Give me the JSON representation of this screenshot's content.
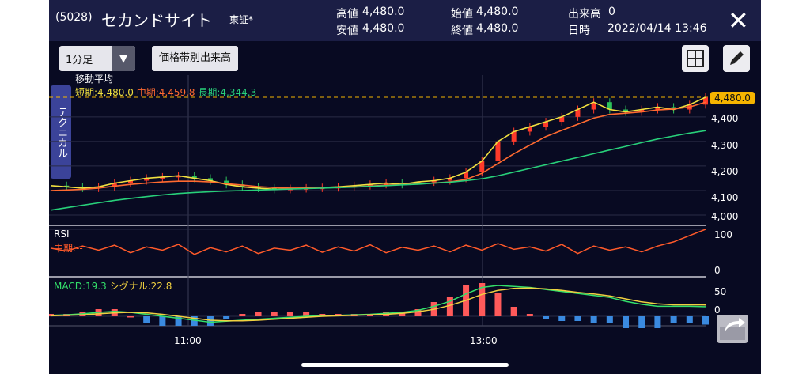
{
  "header": {
    "code": "(5028)",
    "name": "セカンドサイト",
    "market": "東証*",
    "high_label": "高値",
    "high_value": "4,480.0",
    "low_label": "安値",
    "low_value": "4,480.0",
    "open_label": "始値",
    "open_value": "4,480.0",
    "close_label": "終値",
    "close_value": "4,480.0",
    "volume_label": "出来高",
    "volume_value": "0",
    "datetime_label": "日時",
    "datetime_value": "2022/04/14 13:46",
    "close_icon": "close-icon"
  },
  "toolbar": {
    "interval": "1分足",
    "dropdown_icon": "triangle-down-icon",
    "volume_by_price": "価格帯別出来高",
    "grid_icon": "grid-icon",
    "pencil_icon": "pencil-icon"
  },
  "side_tab": "テクニカル",
  "moving_average": {
    "title": "移動平均",
    "short": "短期:4,480.0",
    "mid": "中期:4,459.8",
    "long": "長期:4,344.3",
    "short_color": "#f0e040",
    "mid_color": "#ff6a30",
    "long_color": "#28d07a"
  },
  "price_axis": [
    "4,400",
    "4,300",
    "4,200",
    "4,100",
    "4,000"
  ],
  "current_price": "4,480.0",
  "rsi": {
    "title": "RSI",
    "mid": "中期:--",
    "axis": [
      "100",
      "0"
    ]
  },
  "macd": {
    "macd": "MACD:19.3",
    "signal": "シグナル:22.8",
    "axis": [
      "50",
      "0"
    ],
    "macd_color": "#33e06a",
    "signal_color": "#f0d040"
  },
  "time_axis": [
    "11:00",
    "13:00"
  ],
  "share_icon": "share-icon",
  "colors": {
    "background": "#080a22",
    "header": "#1b1e45",
    "up": "#ff3a2a",
    "down": "#2ec25a"
  },
  "chart_data": [
    {
      "type": "line",
      "title": "移動平均",
      "ylim": [
        4000,
        4480
      ],
      "yticks": [
        4000,
        4100,
        4200,
        4300,
        4400
      ],
      "xticks": [
        "11:00",
        "13:00"
      ],
      "x": [
        0,
        20,
        40,
        60,
        80,
        100,
        120,
        140,
        160,
        180,
        200,
        220,
        240,
        260,
        280,
        300,
        320,
        340,
        360,
        380,
        400,
        420,
        440,
        460,
        480,
        500,
        520,
        540,
        560,
        580,
        600,
        620,
        640,
        660,
        680,
        700,
        720,
        740,
        760,
        780,
        800,
        820
      ],
      "series": [
        {
          "name": "短期",
          "values": [
            4120,
            4115,
            4110,
            4115,
            4130,
            4140,
            4150,
            4155,
            4160,
            4150,
            4140,
            4125,
            4115,
            4110,
            4105,
            4108,
            4110,
            4112,
            4115,
            4120,
            4125,
            4130,
            4125,
            4135,
            4140,
            4150,
            4175,
            4220,
            4300,
            4340,
            4360,
            4380,
            4400,
            4430,
            4460,
            4430,
            4420,
            4430,
            4440,
            4430,
            4450,
            4480
          ]
        },
        {
          "name": "中期",
          "values": [
            4100,
            4102,
            4105,
            4110,
            4118,
            4125,
            4130,
            4135,
            4138,
            4138,
            4135,
            4128,
            4122,
            4116,
            4112,
            4110,
            4110,
            4111,
            4112,
            4115,
            4118,
            4122,
            4124,
            4127,
            4130,
            4135,
            4145,
            4170,
            4210,
            4250,
            4285,
            4320,
            4345,
            4370,
            4395,
            4410,
            4415,
            4420,
            4428,
            4432,
            4440,
            4460
          ]
        },
        {
          "name": "長期",
          "values": [
            4020,
            4030,
            4040,
            4050,
            4060,
            4068,
            4075,
            4082,
            4088,
            4092,
            4095,
            4098,
            4100,
            4102,
            4104,
            4106,
            4108,
            4110,
            4112,
            4114,
            4117,
            4120,
            4123,
            4126,
            4130,
            4134,
            4140,
            4148,
            4160,
            4175,
            4190,
            4205,
            4220,
            4235,
            4250,
            4265,
            4280,
            4295,
            4310,
            4322,
            4334,
            4344
          ]
        }
      ]
    },
    {
      "type": "line",
      "title": "RSI",
      "ylim": [
        0,
        100
      ],
      "yticks": [
        0,
        100
      ],
      "x": [
        0,
        20,
        40,
        60,
        80,
        100,
        120,
        140,
        160,
        180,
        200,
        220,
        240,
        260,
        280,
        300,
        320,
        340,
        360,
        380,
        400,
        420,
        440,
        460,
        480,
        500,
        520,
        540,
        560,
        580,
        600,
        620,
        640,
        660,
        680,
        700,
        720,
        740,
        760,
        780,
        800,
        820
      ],
      "series": [
        {
          "name": "中期",
          "values": [
            55,
            48,
            60,
            50,
            62,
            44,
            58,
            50,
            64,
            40,
            56,
            46,
            60,
            42,
            55,
            50,
            62,
            45,
            58,
            48,
            63,
            44,
            57,
            50,
            60,
            46,
            62,
            50,
            66,
            52,
            58,
            48,
            64,
            42,
            60,
            50,
            58,
            46,
            60,
            70,
            85,
            100
          ]
        }
      ]
    },
    {
      "type": "line",
      "title": "MACD",
      "ylim": [
        -20,
        70
      ],
      "yticks": [
        0,
        50
      ],
      "x": [
        0,
        20,
        40,
        60,
        80,
        100,
        120,
        140,
        160,
        180,
        200,
        220,
        240,
        260,
        280,
        300,
        320,
        340,
        360,
        380,
        400,
        420,
        440,
        460,
        480,
        500,
        520,
        540,
        560,
        580,
        600,
        620,
        640,
        660,
        680,
        700,
        720,
        740,
        760,
        780,
        800,
        820
      ],
      "series": [
        {
          "name": "MACD",
          "values": [
            2,
            3,
            5,
            8,
            10,
            8,
            4,
            0,
            -4,
            -8,
            -12,
            -10,
            -8,
            -6,
            -4,
            -2,
            0,
            1,
            2,
            3,
            4,
            6,
            8,
            12,
            20,
            30,
            45,
            58,
            62,
            60,
            58,
            54,
            50,
            46,
            42,
            38,
            30,
            24,
            20,
            20,
            20,
            19.3
          ]
        },
        {
          "name": "シグナル",
          "values": [
            1,
            2,
            3,
            5,
            7,
            8,
            7,
            4,
            0,
            -4,
            -8,
            -9,
            -9,
            -8,
            -6,
            -4,
            -2,
            0,
            1,
            2,
            3,
            4,
            6,
            9,
            14,
            22,
            32,
            44,
            52,
            56,
            57,
            55,
            52,
            48,
            45,
            41,
            35,
            29,
            25,
            23,
            23,
            22.8
          ]
        }
      ]
    }
  ]
}
